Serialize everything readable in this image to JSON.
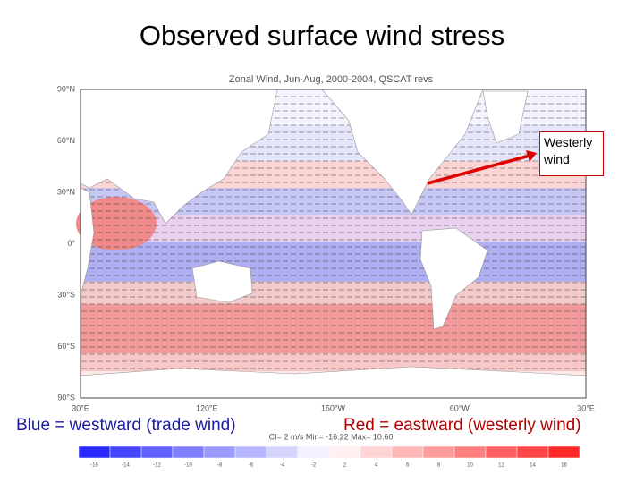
{
  "slide": {
    "title": "Observed surface wind stress",
    "caption_left": "Blue = westward (trade wind)",
    "caption_right": "Red = eastward (westerly wind)",
    "annotation": "Westerly wind"
  },
  "map": {
    "title": "Zonal Wind, Jun-Aug, 2000-2004, QSCAT revs",
    "lat_labels": [
      "90°N",
      "60°N",
      "30°N",
      "0°",
      "30°S",
      "60°S",
      "90°S"
    ],
    "lon_labels": [
      "30°E",
      "120°E",
      "150°W",
      "60°W",
      "30°E"
    ],
    "stats": "CI= 2 m/s   Min= -16.22   Max= 10.60"
  },
  "colorbar": {
    "labels": [
      -16,
      -14,
      -12,
      -10,
      -8,
      -6,
      -4,
      -2,
      2,
      4,
      6,
      8,
      10,
      12,
      14,
      16
    ]
  }
}
